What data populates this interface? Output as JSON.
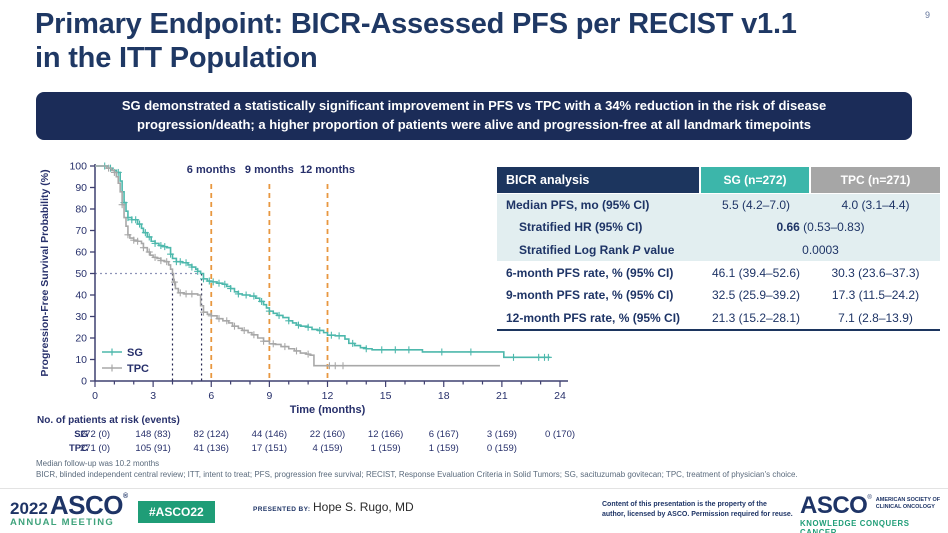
{
  "slide": {
    "page_number": "9",
    "title_line1": "Primary Endpoint: BICR-Assessed PFS per RECIST v1.1",
    "title_line2": "in the ITT Population",
    "banner_line1": "SG demonstrated a statistically significant improvement in PFS vs TPC with a 34% reduction in the risk of disease",
    "banner_line2": "progression/death; a higher proportion of patients were alive and progression-free at all landmark timepoints"
  },
  "results_table": {
    "header_col0": "BICR analysis",
    "header_col1": "SG (n=272)",
    "header_col2": "TPC (n=271)",
    "rows": [
      {
        "label": "Median PFS, mo (95% CI)",
        "sg": "5.5 (4.2–7.0)",
        "tpc": "4.0 (3.1–4.4)"
      },
      {
        "label": "Stratified HR (95% CI)",
        "value_bold": "0.66",
        "value_rest": " (0.53–0.83)"
      },
      {
        "label_pre": "Stratified Log Rank ",
        "label_italic": "P",
        "label_post": " value",
        "value": "0.0003"
      },
      {
        "label": "6-month PFS rate, % (95% CI)",
        "sg": "46.1 (39.4–52.6)",
        "tpc": "30.3 (23.6–37.3)"
      },
      {
        "label": "9-month PFS rate, % (95% CI)",
        "sg": "32.5 (25.9–39.2)",
        "tpc": "17.3 (11.5–24.2)"
      },
      {
        "label": "12-month PFS rate, % (95% CI)",
        "sg": "21.3 (15.2–28.1)",
        "tpc": "7.1 (2.8–13.9)"
      }
    ]
  },
  "chart_data": {
    "type": "line",
    "subtype": "kaplan-meier-step",
    "xlabel": "Time (months)",
    "ylabel": "Progression-Free Survival Probability (%)",
    "xlim": [
      0,
      24
    ],
    "ylim": [
      0,
      100
    ],
    "xticks": [
      0,
      3,
      6,
      9,
      12,
      15,
      18,
      21,
      24
    ],
    "yticks": [
      0,
      10,
      20,
      30,
      40,
      50,
      60,
      70,
      80,
      90,
      100
    ],
    "grid": false,
    "legend_position": "bottom-left",
    "axis_color": "#3f4070",
    "text_color": "#27306b",
    "landmark_color": "#e8973f",
    "median_line_h_color": "#8e94b8",
    "median_line_v_color": "#23244f",
    "landmarks": [
      {
        "label": "6 months",
        "x": 6
      },
      {
        "label": "9 months",
        "x": 9
      },
      {
        "label": "12 months",
        "x": 12
      }
    ],
    "median_markers": {
      "y": 50,
      "sg_x": 5.5,
      "tpc_x": 4.0
    },
    "series": [
      {
        "name": "SG",
        "color": "#4db8ac",
        "median_months": 5.5,
        "steps": [
          [
            0,
            100
          ],
          [
            0.7,
            99
          ],
          [
            0.9,
            98
          ],
          [
            1.1,
            97
          ],
          [
            1.3,
            93
          ],
          [
            1.4,
            88
          ],
          [
            1.5,
            83
          ],
          [
            1.6,
            79
          ],
          [
            1.7,
            76
          ],
          [
            1.9,
            75
          ],
          [
            2.2,
            73
          ],
          [
            2.4,
            71
          ],
          [
            2.5,
            69
          ],
          [
            2.7,
            67
          ],
          [
            2.9,
            65
          ],
          [
            3.1,
            64
          ],
          [
            3.3,
            63
          ],
          [
            3.5,
            62.5
          ],
          [
            3.7,
            62
          ],
          [
            3.9,
            59
          ],
          [
            4.0,
            57
          ],
          [
            4.2,
            55.5
          ],
          [
            4.5,
            55
          ],
          [
            4.8,
            54
          ],
          [
            5.0,
            53
          ],
          [
            5.2,
            52
          ],
          [
            5.3,
            51
          ],
          [
            5.45,
            50
          ],
          [
            5.6,
            47.5
          ],
          [
            5.8,
            46.5
          ],
          [
            6.0,
            46.1
          ],
          [
            6.3,
            45.5
          ],
          [
            6.6,
            45
          ],
          [
            6.8,
            44
          ],
          [
            7.0,
            43
          ],
          [
            7.2,
            41.5
          ],
          [
            7.4,
            40.5
          ],
          [
            7.6,
            40
          ],
          [
            8.0,
            39.5
          ],
          [
            8.3,
            38.5
          ],
          [
            8.5,
            37
          ],
          [
            8.7,
            35.5
          ],
          [
            8.85,
            34
          ],
          [
            9.0,
            32.5
          ],
          [
            9.2,
            31.5
          ],
          [
            9.4,
            30.5
          ],
          [
            9.7,
            29.5
          ],
          [
            10.0,
            28
          ],
          [
            10.2,
            27
          ],
          [
            10.4,
            26
          ],
          [
            10.6,
            25.5
          ],
          [
            11.0,
            25
          ],
          [
            11.2,
            24
          ],
          [
            11.5,
            23.5
          ],
          [
            11.8,
            22.5
          ],
          [
            12.0,
            21.3
          ],
          [
            12.4,
            21
          ],
          [
            12.9,
            19.5
          ],
          [
            13.1,
            17.5
          ],
          [
            13.4,
            16.5
          ],
          [
            13.7,
            15.5
          ],
          [
            14.0,
            15
          ],
          [
            14.3,
            14.5
          ],
          [
            16.9,
            13.5
          ],
          [
            21.1,
            11
          ],
          [
            23.5,
            11
          ]
        ],
        "censors": [
          0.5,
          0.8,
          1.2,
          1.5,
          1.7,
          1.9,
          2.1,
          2.3,
          2.6,
          2.8,
          3.1,
          3.4,
          3.6,
          3.9,
          4.2,
          4.4,
          4.7,
          5.0,
          5.3,
          5.6,
          5.9,
          6.1,
          6.4,
          6.7,
          7.0,
          7.4,
          7.8,
          8.2,
          8.6,
          9.0,
          9.5,
          10.0,
          10.5,
          11.0,
          11.6,
          12.2,
          12.6,
          13.3,
          14.0,
          14.8,
          15.5,
          16.2,
          17.9,
          19.4,
          21.6,
          22.9,
          23.2,
          23.4
        ]
      },
      {
        "name": "TPC",
        "color": "#a8a8a8",
        "median_months": 4.0,
        "steps": [
          [
            0,
            100
          ],
          [
            0.6,
            99
          ],
          [
            0.85,
            98
          ],
          [
            1.0,
            97
          ],
          [
            1.1,
            95
          ],
          [
            1.2,
            92
          ],
          [
            1.3,
            88
          ],
          [
            1.4,
            82
          ],
          [
            1.5,
            76
          ],
          [
            1.6,
            72
          ],
          [
            1.7,
            68
          ],
          [
            1.8,
            66.5
          ],
          [
            2.0,
            65.5
          ],
          [
            2.2,
            65
          ],
          [
            2.4,
            64
          ],
          [
            2.5,
            62
          ],
          [
            2.7,
            60
          ],
          [
            2.85,
            58.5
          ],
          [
            3.0,
            57.5
          ],
          [
            3.2,
            57
          ],
          [
            3.4,
            56
          ],
          [
            3.6,
            55.5
          ],
          [
            3.8,
            54
          ],
          [
            3.9,
            52
          ],
          [
            4.0,
            50
          ],
          [
            4.05,
            46
          ],
          [
            4.15,
            43
          ],
          [
            4.3,
            41
          ],
          [
            4.6,
            40.5
          ],
          [
            5.3,
            40
          ],
          [
            5.45,
            35
          ],
          [
            5.6,
            32
          ],
          [
            5.8,
            31
          ],
          [
            6.0,
            30.3
          ],
          [
            6.3,
            29
          ],
          [
            6.6,
            28
          ],
          [
            6.9,
            27
          ],
          [
            7.1,
            25.5
          ],
          [
            7.4,
            24.5
          ],
          [
            7.6,
            23.5
          ],
          [
            7.9,
            22.5
          ],
          [
            8.1,
            21.5
          ],
          [
            8.4,
            20
          ],
          [
            8.7,
            18.5
          ],
          [
            9.0,
            17.3
          ],
          [
            9.3,
            17
          ],
          [
            9.6,
            16
          ],
          [
            10.0,
            15
          ],
          [
            10.3,
            14
          ],
          [
            10.6,
            13
          ],
          [
            10.9,
            12.5
          ],
          [
            11.1,
            12
          ],
          [
            11.3,
            7.1
          ],
          [
            20.9,
            7.1
          ]
        ],
        "censors": [
          0.7,
          1.0,
          1.4,
          1.7,
          2.0,
          2.2,
          2.5,
          2.8,
          3.1,
          3.4,
          3.7,
          4.1,
          4.4,
          4.7,
          5.0,
          5.6,
          6.0,
          6.4,
          6.8,
          7.2,
          7.7,
          8.2,
          8.7,
          9.2,
          9.8,
          10.4,
          11.0,
          12.1,
          12.4,
          12.8
        ]
      }
    ]
  },
  "risk_table": {
    "title": "No. of patients at risk (events)",
    "timepoints": [
      0,
      3,
      6,
      9,
      12,
      15,
      18,
      21,
      24
    ],
    "rows": [
      {
        "name": "SG",
        "values": [
          "272 (0)",
          "148 (83)",
          "82 (124)",
          "44 (146)",
          "22 (160)",
          "12 (166)",
          "6 (167)",
          "3 (169)",
          "0 (170)"
        ]
      },
      {
        "name": "TPC",
        "values": [
          "271 (0)",
          "105 (91)",
          "41 (136)",
          "17 (151)",
          "4 (159)",
          "1 (159)",
          "1 (159)",
          "0 (159)",
          ""
        ]
      }
    ]
  },
  "footnotes": {
    "line1": "Median follow-up was 10.2 months",
    "line2": "BICR, blinded independent central review; ITT, intent to treat; PFS, progression free survival; RECIST, Response Evaluation Criteria in Solid Tumors; SG, sacituzumab govitecan; TPC, treatment of physician's choice."
  },
  "footer": {
    "logo_year": "2022",
    "logo_asco": "ASCO",
    "logo_reg": "®",
    "logo_sub": "ANNUAL MEETING",
    "hashtag": "#ASCO22",
    "presented_by_label": "PRESENTED BY:",
    "presenter": "Hope S. Rugo, MD",
    "copyright_line1": "Content of this presentation is the property of the",
    "copyright_line2": "author, licensed by ASCO. Permission required for reuse.",
    "asco_right": "ASCO",
    "asco_right_reg": "®",
    "asco_right_sub1": "AMERICAN SOCIETY OF",
    "asco_right_sub2": "CLINICAL ONCOLOGY",
    "asco_right_tagline": "KNOWLEDGE CONQUERS CANCER"
  },
  "colors": {
    "title_navy": "#1f3864",
    "banner_bg": "#1b2c58",
    "table_header_navy": "#1c355e",
    "sg_teal": "#3cb6aa",
    "tpc_gray": "#a6a6a6",
    "table_body_tint": "#e2eef0",
    "landmark_orange": "#e8973f",
    "asco_green": "#1f9d77"
  }
}
